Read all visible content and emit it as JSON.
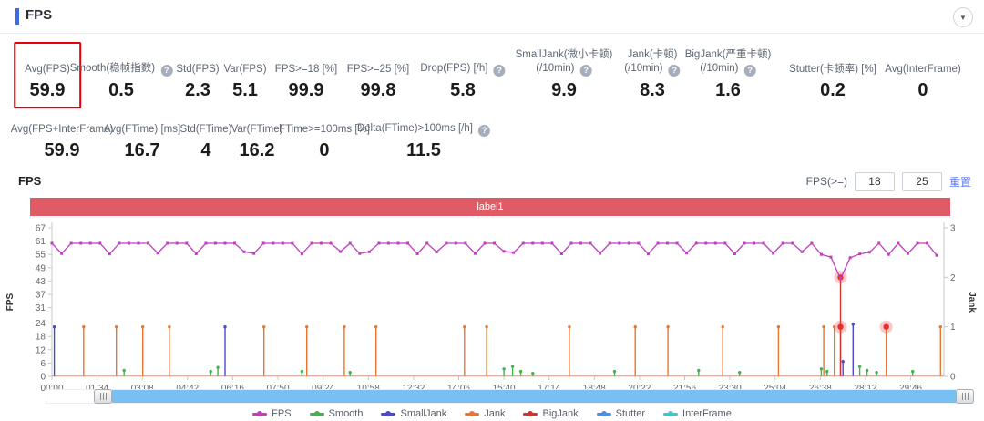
{
  "header": {
    "title": "FPS",
    "accent_color": "#3e6be0",
    "collapse_icon": "collapse-toggle"
  },
  "metrics_row1": [
    {
      "label": "Avg(FPS)",
      "label2": "",
      "value": "59.9",
      "help": false,
      "highlighted": true
    },
    {
      "label": "Smooth(稳帧指数)",
      "label2": "",
      "value": "0.5",
      "help": true,
      "highlighted": false
    },
    {
      "label": "Std(FPS)",
      "label2": "",
      "value": "2.3",
      "help": false,
      "highlighted": false
    },
    {
      "label": "Var(FPS)",
      "label2": "",
      "value": "5.1",
      "help": false,
      "highlighted": false
    },
    {
      "label": "FPS>=18 [%]",
      "label2": "",
      "value": "99.9",
      "help": false,
      "highlighted": false
    },
    {
      "label": "FPS>=25 [%]",
      "label2": "",
      "value": "99.8",
      "help": false,
      "highlighted": false
    },
    {
      "label": "Drop(FPS) [/h]",
      "label2": "",
      "value": "5.8",
      "help": true,
      "highlighted": false
    },
    {
      "label": "SmallJank(微小卡顿)",
      "label2": "(/10min)",
      "value": "9.9",
      "help": true,
      "highlighted": false
    },
    {
      "label": "Jank(卡顿)",
      "label2": "(/10min)",
      "value": "8.3",
      "help": true,
      "highlighted": false
    },
    {
      "label": "BigJank(严重卡顿)",
      "label2": "(/10min)",
      "value": "1.6",
      "help": true,
      "highlighted": false
    },
    {
      "label": "Stutter(卡顿率) [%]",
      "label2": "",
      "value": "0.2",
      "help": false,
      "highlighted": false
    },
    {
      "label": "Avg(InterFrame)",
      "label2": "",
      "value": "0",
      "help": false,
      "highlighted": false
    }
  ],
  "metrics_row2": [
    {
      "label": "Avg(FPS+InterFrame)",
      "label2": "",
      "value": "59.9",
      "help": false,
      "highlighted": false
    },
    {
      "label": "Avg(FTime) [ms]",
      "label2": "",
      "value": "16.7",
      "help": false,
      "highlighted": false
    },
    {
      "label": "Std(FTime)",
      "label2": "",
      "value": "4",
      "help": false,
      "highlighted": false
    },
    {
      "label": "Var(FTime)",
      "label2": "",
      "value": "16.2",
      "help": false,
      "highlighted": false
    },
    {
      "label": "FTime>=100ms [%]",
      "label2": "",
      "value": "0",
      "help": false,
      "highlighted": false
    },
    {
      "label": "Delta(FTime)>100ms [/h]",
      "label2": "",
      "value": "11.5",
      "help": true,
      "highlighted": false
    }
  ],
  "chart_controls": {
    "section_title": "FPS",
    "threshold_label": "FPS(>=)",
    "threshold1": "18",
    "threshold2": "25",
    "reset_label": "重置"
  },
  "chart_data": {
    "type": "line",
    "title": "label1",
    "title_band_color": "#e15b66",
    "zero_line_color": "#dd9579",
    "left_axis": {
      "label": "FPS",
      "ticks": [
        0,
        6,
        12,
        18,
        24,
        31,
        37,
        43,
        49,
        55,
        61,
        67
      ],
      "range": [
        0,
        67
      ]
    },
    "right_axis": {
      "label": "Jank",
      "ticks": [
        0,
        1,
        2,
        3
      ],
      "range": [
        0,
        3
      ]
    },
    "x_axis": {
      "tick_labels": [
        "00:00",
        "01:34",
        "03:08",
        "04:42",
        "06:16",
        "07:50",
        "09:24",
        "10:58",
        "12:32",
        "14:06",
        "15:40",
        "17:14",
        "18:48",
        "20:22",
        "21:56",
        "23:30",
        "25:04",
        "26:38",
        "28:12",
        "29:46"
      ],
      "tick_interval_s": 94,
      "range_s": [
        0,
        1855
      ]
    },
    "series": [
      {
        "name": "FPS",
        "color": "#bf3fbf",
        "axis": "left",
        "base": 60,
        "marker_interval_s": 20,
        "dips": [
          [
            20,
            55.4
          ],
          [
            120,
            55.2
          ],
          [
            220,
            55.6
          ],
          [
            300,
            55.3
          ],
          [
            400,
            56.2
          ],
          [
            420,
            55.4
          ],
          [
            520,
            55.2
          ],
          [
            600,
            56.3
          ],
          [
            640,
            55.4
          ],
          [
            660,
            56.2
          ],
          [
            760,
            55.3
          ],
          [
            800,
            56.1
          ],
          [
            880,
            55.4
          ],
          [
            940,
            56.4
          ],
          [
            960,
            55.8
          ],
          [
            1060,
            55.3
          ],
          [
            1140,
            55.5
          ],
          [
            1240,
            55.2
          ],
          [
            1320,
            55.6
          ],
          [
            1420,
            55.3
          ],
          [
            1500,
            55.5
          ],
          [
            1560,
            56.2
          ],
          [
            1600,
            55.0
          ],
          [
            1620,
            53.8
          ],
          [
            1640,
            44.0
          ],
          [
            1660,
            53.5
          ],
          [
            1680,
            55.2
          ],
          [
            1700,
            56.0
          ],
          [
            1740,
            55.0
          ],
          [
            1780,
            55.4
          ],
          [
            1840,
            54.6
          ]
        ]
      },
      {
        "name": "Smooth",
        "color": "#45b14f",
        "axis": "right",
        "spikes": [
          [
            150,
            0.12
          ],
          [
            330,
            0.1
          ],
          [
            345,
            0.18
          ],
          [
            520,
            0.1
          ],
          [
            620,
            0.08
          ],
          [
            940,
            0.15
          ],
          [
            958,
            0.2
          ],
          [
            975,
            0.1
          ],
          [
            1000,
            0.06
          ],
          [
            1170,
            0.1
          ],
          [
            1345,
            0.12
          ],
          [
            1430,
            0.08
          ],
          [
            1600,
            0.15
          ],
          [
            1612,
            0.1
          ],
          [
            1680,
            0.2
          ],
          [
            1695,
            0.12
          ],
          [
            1715,
            0.08
          ],
          [
            1790,
            0.1
          ]
        ]
      },
      {
        "name": "SmallJank",
        "color": "#4a49d4",
        "axis": "right",
        "spikes": [
          [
            5,
            1
          ],
          [
            360,
            1
          ],
          [
            1645,
            0.3
          ],
          [
            1666,
            1.05
          ]
        ]
      },
      {
        "name": "Jank",
        "color": "#e8762e",
        "axis": "right",
        "spikes": [
          [
            66,
            1
          ],
          [
            134,
            1
          ],
          [
            189,
            1
          ],
          [
            244,
            1
          ],
          [
            441,
            1
          ],
          [
            530,
            1
          ],
          [
            608,
            1
          ],
          [
            674,
            1
          ],
          [
            858,
            1
          ],
          [
            904,
            1
          ],
          [
            1076,
            1
          ],
          [
            1213,
            1
          ],
          [
            1281,
            1
          ],
          [
            1395,
            1
          ],
          [
            1511,
            1
          ],
          [
            1605,
            1
          ],
          [
            1627,
            1
          ],
          [
            1640,
            1
          ],
          [
            1735,
            1
          ],
          [
            1848,
            1
          ]
        ]
      },
      {
        "name": "BigJank",
        "color": "#d63030",
        "axis": "right",
        "spikes": [
          [
            1640,
            2
          ]
        ],
        "glow_points": [
          [
            1640,
            1
          ],
          [
            1640,
            2
          ],
          [
            1735,
            1
          ]
        ]
      },
      {
        "name": "Stutter",
        "color": "#4d8fe8",
        "axis": "right",
        "spikes": []
      },
      {
        "name": "InterFrame",
        "color": "#3cc8c8",
        "axis": "right",
        "baseline": 0,
        "spikes": []
      }
    ],
    "legend": [
      "FPS",
      "Smooth",
      "SmallJank",
      "Jank",
      "BigJank",
      "Stutter",
      "InterFrame"
    ],
    "legend_position": "bottom",
    "grid": false
  },
  "zoom_slider": {
    "handle_icon": "grip-lines"
  }
}
